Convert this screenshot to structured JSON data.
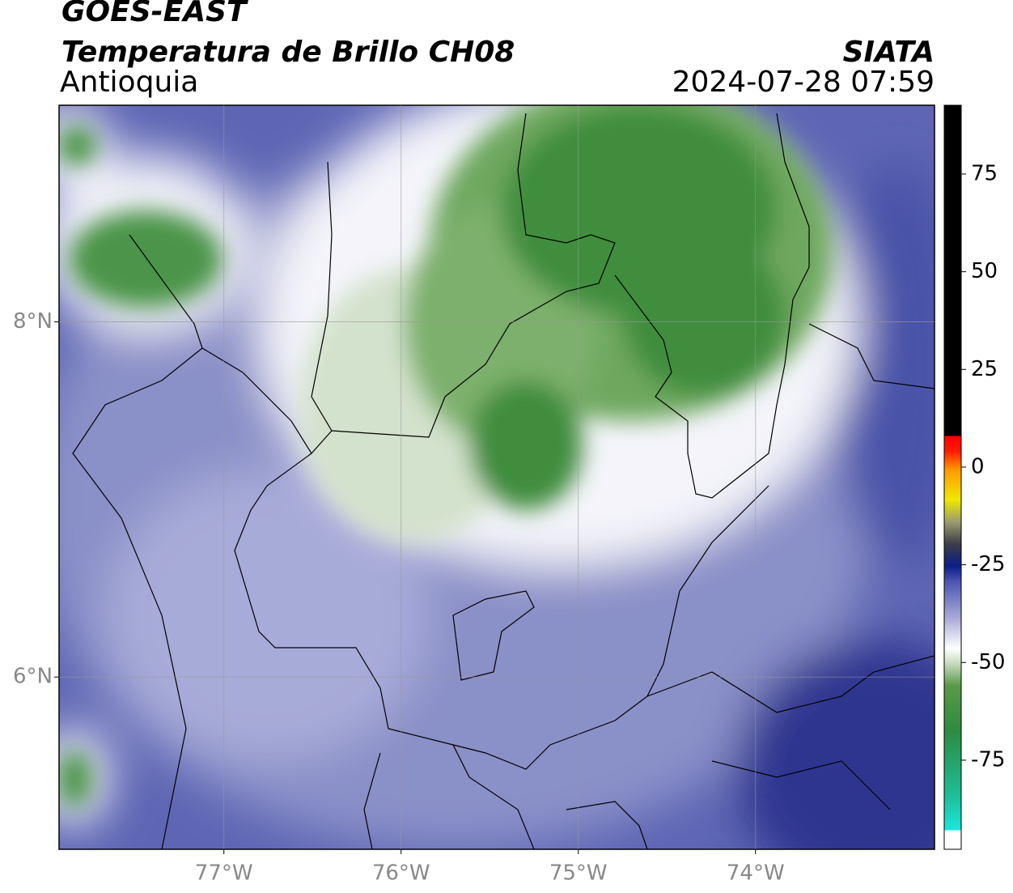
{
  "header": {
    "title": "GOES-EAST",
    "subtitle": "Temperatura de Brillo CH08",
    "region": "Antioquia",
    "source": "SIATA",
    "datetime": "2024-07-28 07:59"
  },
  "map": {
    "xlim": [
      -77.93,
      -72.99
    ],
    "ylim": [
      5.03,
      9.22
    ],
    "xticks": [
      {
        "value": -77,
        "label": "77°W"
      },
      {
        "value": -76,
        "label": "76°W"
      },
      {
        "value": -75,
        "label": "75°W"
      },
      {
        "value": -74,
        "label": "74°W"
      }
    ],
    "yticks": [
      {
        "value": 8,
        "label": "8°N"
      },
      {
        "value": 6,
        "label": "6°N"
      }
    ],
    "grid": true
  },
  "colorbar": {
    "clim": [
      -97.8,
      92.6
    ],
    "ticks": [
      75,
      50,
      25,
      0,
      -25,
      -50,
      -75
    ]
  }
}
